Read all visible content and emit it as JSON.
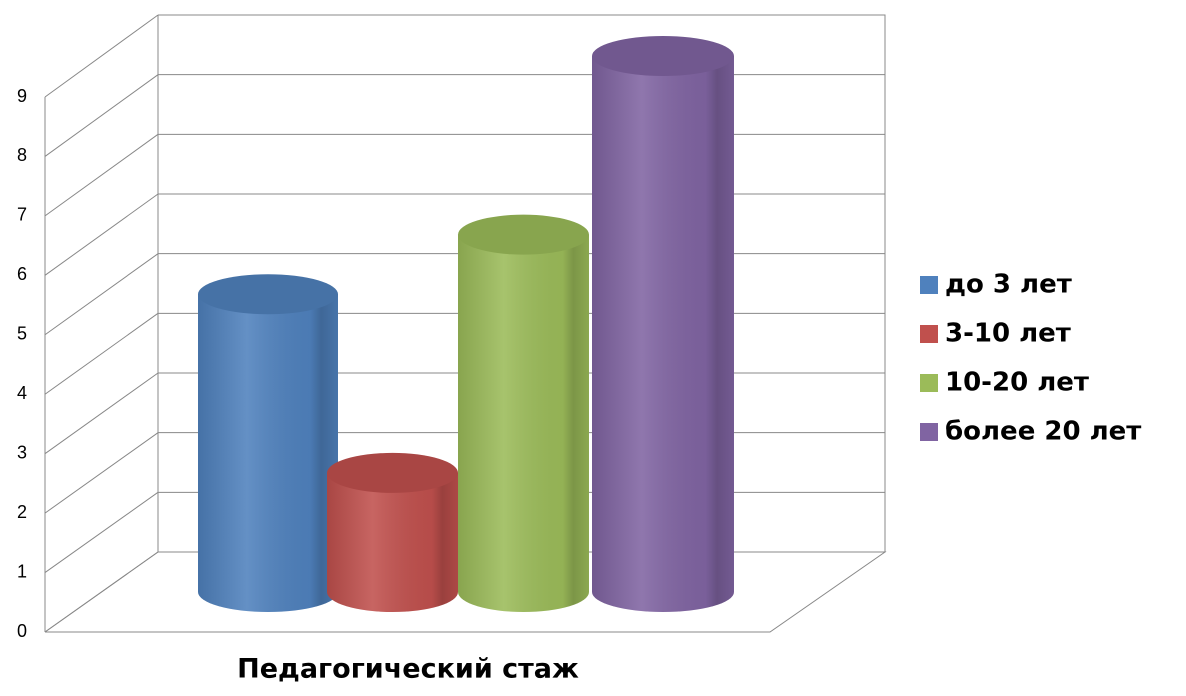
{
  "chart_data": {
    "type": "cylinder",
    "x_label": "Педагогический стаж",
    "series": [
      {
        "name": "до 3 лет",
        "color": "#4f81bd",
        "values": [
          5
        ]
      },
      {
        "name": "3-10 лет",
        "color": "#c0504d",
        "values": [
          2
        ]
      },
      {
        "name": "10-20 лет",
        "color": "#9bbb59",
        "values": [
          6
        ]
      },
      {
        "name": "более 20 лет",
        "color": "#8064a2",
        "values": [
          9
        ]
      }
    ],
    "ylim": [
      0,
      9
    ],
    "yticks": [
      0,
      1,
      2,
      3,
      4,
      5,
      6,
      7,
      8,
      9
    ],
    "grid": true,
    "legend": "right"
  }
}
